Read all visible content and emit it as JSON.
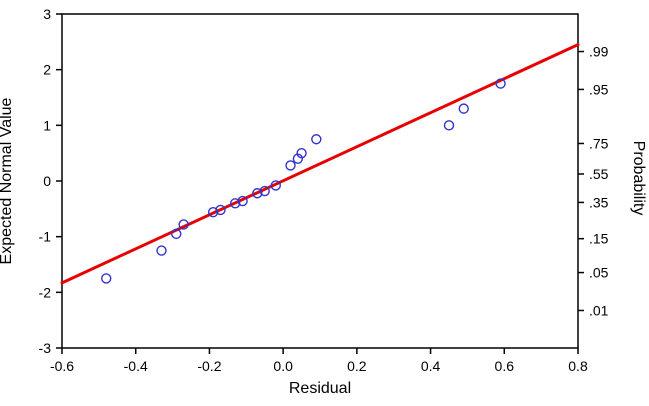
{
  "figure": {
    "background": "#ffffff",
    "axis_color": "#000000"
  },
  "chart_data": {
    "type": "scatter",
    "title": "",
    "xlabel": "Residual",
    "ylabel_left": "Expected Normal Value",
    "ylabel_right": "Probability",
    "xlim": [
      -0.6,
      0.8
    ],
    "ylim": [
      -3,
      3
    ],
    "grid": false,
    "legend_position": "none",
    "x_ticks": [
      -0.6,
      -0.4,
      -0.2,
      0.0,
      0.2,
      0.4,
      0.6,
      0.8
    ],
    "x_tick_labels": [
      "-0.6",
      "-0.4",
      "-0.2",
      "0.0",
      "0.2",
      "0.4",
      "0.6",
      "0.8"
    ],
    "y_ticks": [
      -3,
      -2,
      -1,
      0,
      1,
      2,
      3
    ],
    "y_tick_labels": [
      "-3",
      "-2",
      "-1",
      "0",
      "1",
      "2",
      "3"
    ],
    "right_ticks": [
      {
        "label": ".99",
        "value": 2.326
      },
      {
        "label": ".95",
        "value": 1.645
      },
      {
        "label": ".75",
        "value": 0.674
      },
      {
        "label": ".55",
        "value": 0.126
      },
      {
        "label": ".35",
        "value": -0.385
      },
      {
        "label": ".15",
        "value": -1.036
      },
      {
        "label": ".05",
        "value": -1.645
      },
      {
        "label": ".01",
        "value": -2.326
      }
    ],
    "points": [
      [
        -0.48,
        -1.75
      ],
      [
        -0.33,
        -1.25
      ],
      [
        -0.29,
        -0.95
      ],
      [
        -0.27,
        -0.78
      ],
      [
        -0.19,
        -0.56
      ],
      [
        -0.17,
        -0.52
      ],
      [
        -0.13,
        -0.4
      ],
      [
        -0.11,
        -0.36
      ],
      [
        -0.07,
        -0.22
      ],
      [
        -0.05,
        -0.18
      ],
      [
        -0.02,
        -0.08
      ],
      [
        0.02,
        0.28
      ],
      [
        0.04,
        0.4
      ],
      [
        0.05,
        0.5
      ],
      [
        0.09,
        0.75
      ],
      [
        0.45,
        1.0
      ],
      [
        0.49,
        1.3
      ],
      [
        0.59,
        1.75
      ]
    ],
    "fit_line": {
      "x1": -0.6,
      "y1": -1.83,
      "x2": 0.8,
      "y2": 2.45,
      "color": "#e60000",
      "width": 3
    },
    "point_style": {
      "color": "#3333cc",
      "radius": 4.5,
      "stroke_width": 1.4
    }
  }
}
